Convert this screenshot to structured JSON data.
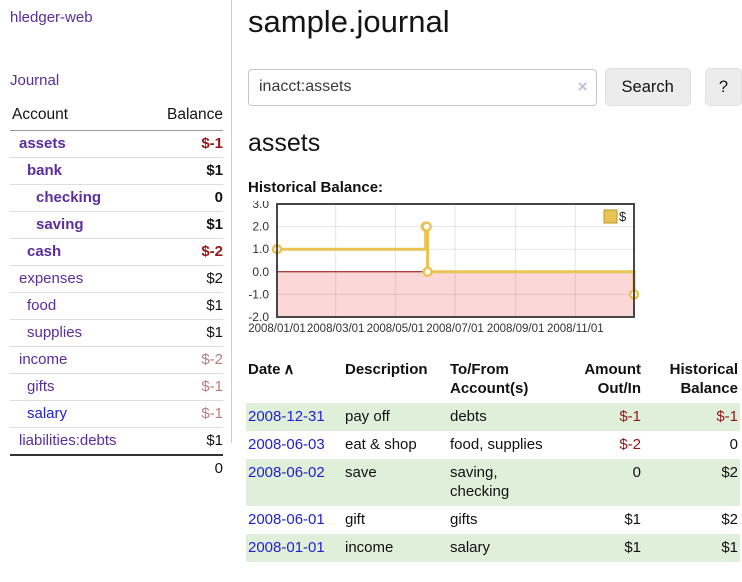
{
  "app": {
    "title": "hledger-web"
  },
  "sidebar": {
    "journal_link": "Journal",
    "table_headers": {
      "account": "Account",
      "balance": "Balance"
    },
    "accounts": [
      {
        "name": "assets",
        "balance": "$-1"
      },
      {
        "name": "bank",
        "balance": "$1"
      },
      {
        "name": "checking",
        "balance": "0"
      },
      {
        "name": "saving",
        "balance": "$1"
      },
      {
        "name": "cash",
        "balance": "$-2"
      },
      {
        "name": "expenses",
        "balance": "$2"
      },
      {
        "name": "food",
        "balance": "$1"
      },
      {
        "name": "supplies",
        "balance": "$1"
      },
      {
        "name": "income",
        "balance": "$-2"
      },
      {
        "name": "gifts",
        "balance": "$-1"
      },
      {
        "name": "salary",
        "balance": "$-1"
      },
      {
        "name": "liabilities:debts",
        "balance": "$1"
      }
    ],
    "total": "0"
  },
  "main": {
    "title": "sample.journal",
    "search": {
      "value": "inacct:assets",
      "clear_icon": "×",
      "search_button": "Search",
      "help_button": "?"
    },
    "account_heading": "assets",
    "chart_heading": "Historical Balance:"
  },
  "chart_data": {
    "type": "line",
    "title": "Historical Balance:",
    "step": true,
    "xlim": [
      "2008-01-01",
      "2008-12-31"
    ],
    "ylim": [
      -2,
      3
    ],
    "x_ticks": [
      "2008/01/01",
      "2008/03/01",
      "2008/05/01",
      "2008/07/01",
      "2008/09/01",
      "2008/11/01"
    ],
    "y_ticks": [
      3,
      2,
      1,
      0,
      -1,
      -2
    ],
    "series": [
      {
        "name": "$",
        "color": "#e9c353",
        "points": [
          [
            "2008-01-01",
            1
          ],
          [
            "2008-06-01",
            2
          ],
          [
            "2008-06-02",
            2
          ],
          [
            "2008-06-03",
            0
          ],
          [
            "2008-12-31",
            -1
          ]
        ]
      }
    ],
    "legend": {
      "label": "$",
      "position": "top-right"
    },
    "colors": {
      "negative_region": "#fcd7d7",
      "zero_line": "#8b0000",
      "grid": "rgba(0,0,0,0.10)",
      "border": "#474747",
      "legend_border": "#b8962f",
      "tick_text": "#333"
    }
  },
  "register": {
    "columns": {
      "date": "Date",
      "description": "Description",
      "accounts": "To/From Account(s)",
      "amount": "Amount Out/In",
      "balance": "Historical Balance"
    },
    "sort_icon": "∧",
    "rows": [
      {
        "date": "2008-12-31",
        "description": "pay off",
        "accounts": "debts",
        "amount": "$-1",
        "balance": "$-1"
      },
      {
        "date": "2008-06-03",
        "description": "eat & shop",
        "accounts": "food, supplies",
        "amount": "$-2",
        "balance": "0"
      },
      {
        "date": "2008-06-02",
        "description": "save",
        "accounts": "saving, checking",
        "amount": "0",
        "balance": "$2"
      },
      {
        "date": "2008-06-01",
        "description": "gift",
        "accounts": "gifts",
        "amount": "$1",
        "balance": "$2"
      },
      {
        "date": "2008-01-01",
        "description": "income",
        "accounts": "salary",
        "amount": "$1",
        "balance": "$1"
      }
    ]
  },
  "colors": {
    "link_purple": "#5b2d9e",
    "link_blue": "#2121d4",
    "negative_strong": "#961616",
    "negative_muted": "#bd7b7b",
    "row_shade_green": "#e0efda",
    "accent_gold": "#e9c353"
  }
}
